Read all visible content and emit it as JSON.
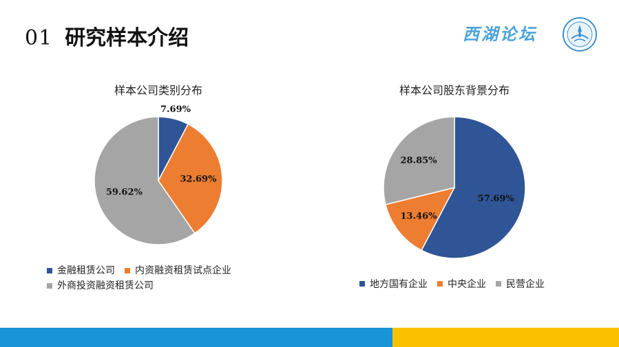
{
  "header": {
    "number": "01",
    "title": "研究样本介绍"
  },
  "branding": {
    "forum_name": "西湖论坛"
  },
  "colors": {
    "blue": "#2f5597",
    "orange": "#ed7d31",
    "gray": "#a5a5a5",
    "bar_blue": "#1795d8",
    "bar_yellow": "#fbc000"
  },
  "chart_data": [
    {
      "type": "pie",
      "title": "样本公司类别分布",
      "legend_position": "bottom",
      "categories": [
        "金融租赁公司",
        "内资融资租赁试点企业",
        "外商投资融资租赁公司"
      ],
      "values": [
        7.69,
        32.69,
        59.62
      ],
      "labels": [
        "7.69%",
        "32.69%",
        "59.62%"
      ],
      "colors": [
        "#2f5597",
        "#ed7d31",
        "#a5a5a5"
      ]
    },
    {
      "type": "pie",
      "title": "样本公司股东背景分布",
      "legend_position": "bottom",
      "categories": [
        "地方国有企业",
        "中央企业",
        "民营企业"
      ],
      "values": [
        57.69,
        13.46,
        28.85
      ],
      "labels": [
        "57.69%",
        "13.46%",
        "28.85%"
      ],
      "colors": [
        "#2f5597",
        "#ed7d31",
        "#a5a5a5"
      ]
    }
  ]
}
